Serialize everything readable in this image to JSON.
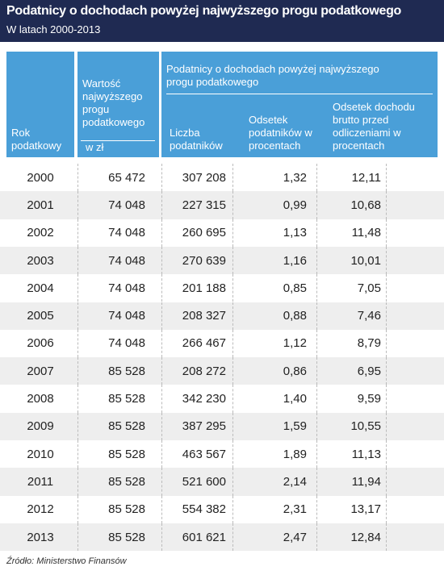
{
  "header": {
    "title": "Podatnicy o dochodach powyżej najwyższego progu podatkowego",
    "subtitle": "W latach 2000-2013"
  },
  "table": {
    "columns": {
      "year": "Rok podatkowy",
      "threshold": "Wartość najwyższego progu podatkowego",
      "threshold_unit": "w zł",
      "group": "Podatnicy o dochodach powyżej najwyższego progu podatkowego",
      "count": "Liczba podatników",
      "percent": "Odsetek podatników w procentach",
      "income": "Odsetek dochodu brutto przed odliczeniami w procentach"
    },
    "rows": [
      [
        "2000",
        "65 472",
        "307 208",
        "1,32",
        "12,11"
      ],
      [
        "2001",
        "74 048",
        "227 315",
        "0,99",
        "10,68"
      ],
      [
        "2002",
        "74 048",
        "260 695",
        "1,13",
        "11,48"
      ],
      [
        "2003",
        "74 048",
        "270 639",
        "1,16",
        "10,01"
      ],
      [
        "2004",
        "74 048",
        "201 188",
        "0,85",
        "7,05"
      ],
      [
        "2005",
        "74 048",
        "208 327",
        "0,88",
        "7,46"
      ],
      [
        "2006",
        "74 048",
        "266 467",
        "1,12",
        "8,79"
      ],
      [
        "2007",
        "85 528",
        "208 272",
        "0,86",
        "6,95"
      ],
      [
        "2008",
        "85 528",
        "342 230",
        "1,40",
        "9,59"
      ],
      [
        "2009",
        "85 528",
        "387 295",
        "1,59",
        "10,55"
      ],
      [
        "2010",
        "85 528",
        "463 567",
        "1,89",
        "11,13"
      ],
      [
        "2011",
        "85 528",
        "521 600",
        "2,14",
        "11,94"
      ],
      [
        "2012",
        "85 528",
        "554 382",
        "2,31",
        "13,17"
      ],
      [
        "2013",
        "85 528",
        "601 621",
        "2,47",
        "12,84"
      ]
    ]
  },
  "source": "Źródło: Ministerstwo Finansów"
}
